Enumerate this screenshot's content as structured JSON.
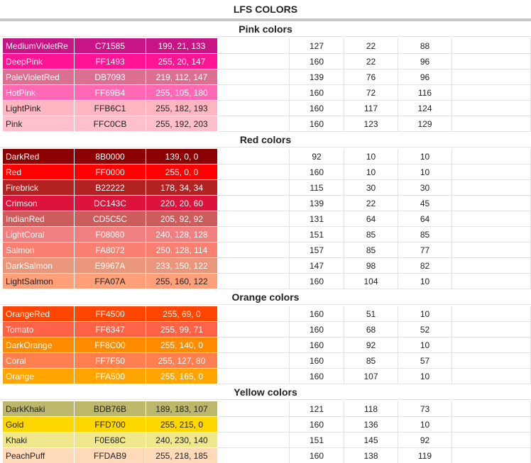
{
  "title": "LFS COLORS",
  "sections": [
    {
      "name": "Pink colors",
      "rows": [
        [
          "MediumVioletRe",
          "C71585",
          "199, 21, 133",
          127,
          22,
          88
        ],
        [
          "DeepPink",
          "FF1493",
          "255, 20, 147",
          160,
          22,
          96
        ],
        [
          "PaleVioletRed",
          "DB7093",
          "219, 112, 147",
          139,
          76,
          96
        ],
        [
          "HotPink",
          "FF69B4",
          "255, 105, 180",
          160,
          72,
          116
        ],
        [
          "LightPink",
          "FFB6C1",
          "255, 182, 193",
          160,
          117,
          124
        ],
        [
          "Pink",
          "FFC0CB",
          "255, 192, 203",
          160,
          123,
          129
        ]
      ]
    },
    {
      "name": "Red colors",
      "rows": [
        [
          "DarkRed",
          "8B0000",
          "139, 0, 0",
          92,
          10,
          10
        ],
        [
          "Red",
          "FF0000",
          "255, 0, 0",
          160,
          10,
          10
        ],
        [
          "Firebrick",
          "B22222",
          "178, 34, 34",
          115,
          30,
          30
        ],
        [
          "Crimson",
          "DC143C",
          "220, 20, 60",
          139,
          22,
          45
        ],
        [
          "IndianRed",
          "CD5C5C",
          "205, 92, 92",
          131,
          64,
          64
        ],
        [
          "LightCoral",
          "F08080",
          "240, 128, 128",
          151,
          85,
          85
        ],
        [
          "Salmon",
          "FA8072",
          "250, 128, 114",
          157,
          85,
          77
        ],
        [
          "DarkSalmon",
          "E9967A",
          "233, 150, 122",
          147,
          98,
          82
        ],
        [
          "LightSalmon",
          "FFA07A",
          "255, 160, 122",
          160,
          104,
          10
        ]
      ]
    },
    {
      "name": "Orange colors",
      "rows": [
        [
          "OrangeRed",
          "FF4500",
          "255, 69, 0",
          160,
          51,
          10
        ],
        [
          "Tomato",
          "FF6347",
          "255, 99, 71",
          160,
          68,
          52
        ],
        [
          "DarkOrange",
          "FF8C00",
          "255, 140, 0",
          160,
          92,
          10
        ],
        [
          "Coral",
          "FF7F50",
          "255, 127, 80",
          160,
          85,
          57
        ],
        [
          "Orange",
          "FFA500",
          "255, 165, 0",
          160,
          107,
          10
        ]
      ]
    },
    {
      "name": "Yellow colors",
      "rows": [
        [
          "DarkKhaki",
          "BDB76B",
          "189, 183, 107",
          121,
          118,
          73
        ],
        [
          "Gold",
          "FFD700",
          "255, 215, 0",
          160,
          136,
          10
        ],
        [
          "Khaki",
          "F0E68C",
          "240, 230, 140",
          151,
          145,
          92
        ],
        [
          "PeachPuff",
          "FFDAB9",
          "255, 218, 185",
          160,
          138,
          119
        ]
      ]
    }
  ]
}
